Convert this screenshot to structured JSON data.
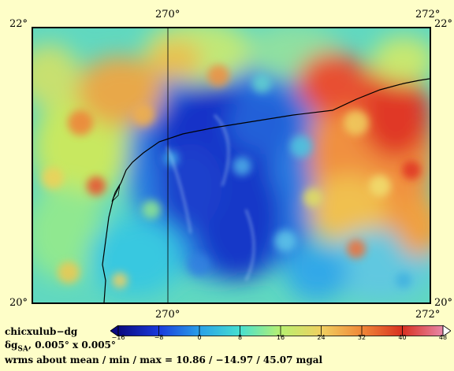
{
  "map": {
    "lon_labels_top": [
      "270°",
      "272°"
    ],
    "lon_labels_bottom": [
      "270°",
      "272°"
    ],
    "lat_labels_left": [
      "22°",
      "20°"
    ],
    "lat_labels_right": [
      "22°",
      "20°"
    ],
    "lon_range": [
      268.8,
      272.0
    ],
    "lat_range": [
      20.0,
      22.0
    ]
  },
  "info": {
    "name": "chicxulub−dg",
    "symbol_main": "δg",
    "symbol_sub": "SA",
    "resolution": ", 0.005° x 0.005°",
    "stats": "wrms about mean / min / max = 10.86 / −14.97 / 45.07 mgal"
  },
  "colorbar": {
    "ticks": [
      "−16",
      "−8",
      "0",
      "8",
      "16",
      "24",
      "32",
      "40",
      "48"
    ],
    "min": -16,
    "max": 48,
    "colors": [
      "#0a0a80",
      "#1a3adc",
      "#2aa0e8",
      "#46e0d0",
      "#b8f070",
      "#f0d060",
      "#f08838",
      "#d83020",
      "#e888a8"
    ]
  },
  "colors": {
    "background": "#fefec8",
    "coastline": "#000000"
  }
}
